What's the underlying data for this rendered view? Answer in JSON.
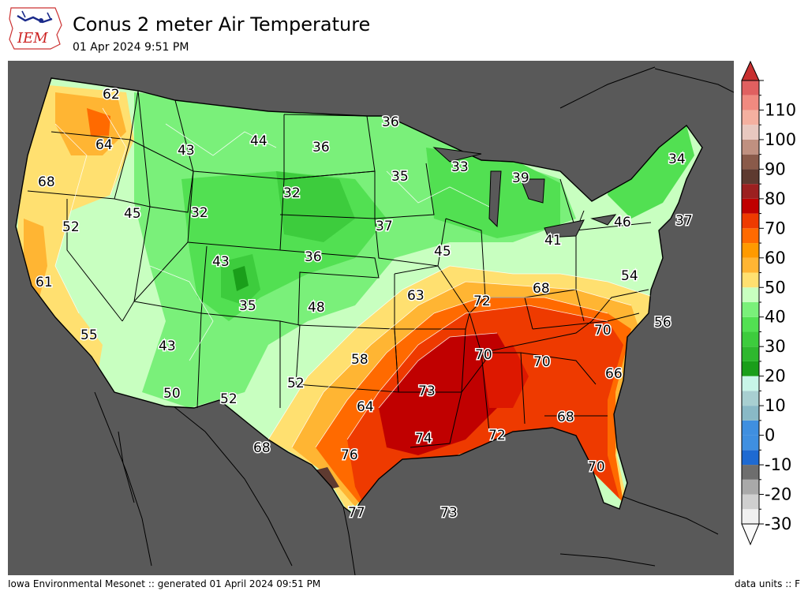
{
  "header": {
    "title": "Conus 2 meter Air Temperature",
    "timestamp": "01 Apr 2024 9:51 PM",
    "logo_text": "IEM"
  },
  "footer": {
    "credit": "Iowa Environmental Mesonet :: generated 01 April 2024 09:51 PM",
    "units": "data units :: F"
  },
  "colors": {
    "background": "#595959",
    "hot": "#d42a00",
    "warm": "#ffa500",
    "cool": "#4ee64e",
    "cold": "#28a428"
  },
  "colorbar": {
    "ticks": [
      "110",
      "100",
      "90",
      "80",
      "70",
      "60",
      "50",
      "40",
      "30",
      "20",
      "10",
      "0",
      "-10",
      "-20",
      "-30"
    ],
    "tick_values": [
      110,
      100,
      90,
      80,
      70,
      60,
      50,
      40,
      30,
      20,
      10,
      0,
      -10,
      -20,
      -30
    ],
    "min": -30,
    "max": 120,
    "bands": [
      {
        "from": -30,
        "to": -25,
        "color": "#f0f0f0"
      },
      {
        "from": -25,
        "to": -20,
        "color": "#cfcfcf"
      },
      {
        "from": -20,
        "to": -15,
        "color": "#a9a9a9"
      },
      {
        "from": -15,
        "to": -10,
        "color": "#6e6e6e"
      },
      {
        "from": -10,
        "to": -5,
        "color": "#1e6ad2"
      },
      {
        "from": -5,
        "to": 0,
        "color": "#3f8fe0"
      },
      {
        "from": 0,
        "to": 5,
        "color": "#3f8fe0"
      },
      {
        "from": 5,
        "to": 10,
        "color": "#89b9c6"
      },
      {
        "from": 10,
        "to": 15,
        "color": "#a8cfd1"
      },
      {
        "from": 15,
        "to": 20,
        "color": "#c8f5e8"
      },
      {
        "from": 20,
        "to": 25,
        "color": "#1a9e1a"
      },
      {
        "from": 25,
        "to": 30,
        "color": "#2eb82e"
      },
      {
        "from": 30,
        "to": 35,
        "color": "#3dcc3d"
      },
      {
        "from": 35,
        "to": 40,
        "color": "#52e052"
      },
      {
        "from": 40,
        "to": 45,
        "color": "#7af07a"
      },
      {
        "from": 45,
        "to": 50,
        "color": "#c8ffc0"
      },
      {
        "from": 50,
        "to": 55,
        "color": "#ffe070"
      },
      {
        "from": 55,
        "to": 60,
        "color": "#ffb533"
      },
      {
        "from": 60,
        "to": 65,
        "color": "#ff9a00"
      },
      {
        "from": 65,
        "to": 70,
        "color": "#ff6a00"
      },
      {
        "from": 70,
        "to": 75,
        "color": "#ee3a00"
      },
      {
        "from": 75,
        "to": 80,
        "color": "#c00000"
      },
      {
        "from": 80,
        "to": 85,
        "color": "#9c2020"
      },
      {
        "from": 85,
        "to": 90,
        "color": "#5e3a30"
      },
      {
        "from": 90,
        "to": 95,
        "color": "#8a5a4a"
      },
      {
        "from": 95,
        "to": 100,
        "color": "#c09080"
      },
      {
        "from": 100,
        "to": 105,
        "color": "#e8c8c0"
      },
      {
        "from": 105,
        "to": 110,
        "color": "#f4b0a0"
      },
      {
        "from": 110,
        "to": 115,
        "color": "#f08a80"
      },
      {
        "from": 115,
        "to": 120,
        "color": "#e06060"
      }
    ]
  },
  "map_labels": [
    {
      "text": "62",
      "name": "label-62-oregon-north"
    },
    {
      "text": "64",
      "name": "label-64-oregon"
    },
    {
      "text": "43",
      "name": "label-43-idaho"
    },
    {
      "text": "44",
      "name": "label-44-montana"
    },
    {
      "text": "36",
      "name": "label-36-north-dakota"
    },
    {
      "text": "36",
      "name": "label-36-minnesota-north"
    },
    {
      "text": "35",
      "name": "label-35-minnesota"
    },
    {
      "text": "33",
      "name": "label-33-wisconsin"
    },
    {
      "text": "39",
      "name": "label-39-michigan"
    },
    {
      "text": "34",
      "name": "label-34-maine"
    },
    {
      "text": "68",
      "name": "label-68-northern-california-coast"
    },
    {
      "text": "32",
      "name": "label-32-south-dakota"
    },
    {
      "text": "32",
      "name": "label-32-wyoming"
    },
    {
      "text": "45",
      "name": "label-45-nevada-north"
    },
    {
      "text": "52",
      "name": "label-52-california-north"
    },
    {
      "text": "37",
      "name": "label-37-nebraska-iowa"
    },
    {
      "text": "46",
      "name": "label-46-new-york"
    },
    {
      "text": "37",
      "name": "label-37-connecticut"
    },
    {
      "text": "41",
      "name": "label-41-ohio-north"
    },
    {
      "text": "45",
      "name": "label-45-iowa"
    },
    {
      "text": "36",
      "name": "label-36-nebraska"
    },
    {
      "text": "43",
      "name": "label-43-utah"
    },
    {
      "text": "61",
      "name": "label-61-california-central"
    },
    {
      "text": "35",
      "name": "label-35-colorado"
    },
    {
      "text": "48",
      "name": "label-48-kansas"
    },
    {
      "text": "63",
      "name": "label-63-missouri"
    },
    {
      "text": "72",
      "name": "label-72-kentucky-west"
    },
    {
      "text": "68",
      "name": "label-68-west-virginia"
    },
    {
      "text": "54",
      "name": "label-54-virginia"
    },
    {
      "text": "56",
      "name": "label-56-north-carolina-coast"
    },
    {
      "text": "70",
      "name": "label-70-north-carolina"
    },
    {
      "text": "55",
      "name": "label-55-southern-california"
    },
    {
      "text": "43",
      "name": "label-43-arizona"
    },
    {
      "text": "58",
      "name": "label-58-oklahoma"
    },
    {
      "text": "70",
      "name": "label-70-tennessee"
    },
    {
      "text": "70",
      "name": "label-70-georgia"
    },
    {
      "text": "66",
      "name": "label-66-south-carolina"
    },
    {
      "text": "50",
      "name": "label-50-arizona-south"
    },
    {
      "text": "52",
      "name": "label-52-new-mexico"
    },
    {
      "text": "52",
      "name": "label-52-texas-panhandle"
    },
    {
      "text": "73",
      "name": "label-73-arkansas"
    },
    {
      "text": "64",
      "name": "label-64-texas"
    },
    {
      "text": "68",
      "name": "label-68-florida-north"
    },
    {
      "text": "74",
      "name": "label-74-louisiana"
    },
    {
      "text": "72",
      "name": "label-72-mississippi-coast"
    },
    {
      "text": "68",
      "name": "label-68-west-texas"
    },
    {
      "text": "76",
      "name": "label-76-south-texas"
    },
    {
      "text": "70",
      "name": "label-70-florida"
    },
    {
      "text": "77",
      "name": "label-77-texas-south"
    },
    {
      "text": "73",
      "name": "label-73-gulf"
    }
  ]
}
